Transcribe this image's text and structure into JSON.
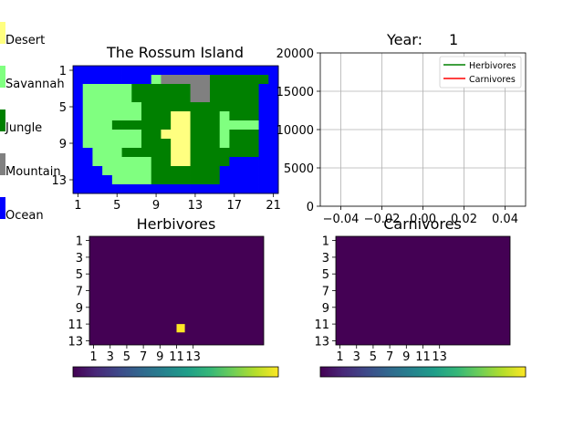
{
  "colors": {
    "desert": "#ffff80",
    "savannah": "#80ff80",
    "jungle": "#008000",
    "mountain": "#808080",
    "ocean": "#0000ff",
    "herbivore_line": "#008000",
    "carnivore_line": "#ff0000",
    "grid": "#b0b0b0"
  },
  "viridis": [
    "#440154",
    "#482878",
    "#3e4989",
    "#31688e",
    "#26828e",
    "#1f9e89",
    "#35b779",
    "#6ece58",
    "#b5de2b",
    "#fde725"
  ],
  "legend": [
    {
      "key": "desert",
      "label": "Desert"
    },
    {
      "key": "savannah",
      "label": "Savannah"
    },
    {
      "key": "jungle",
      "label": "Jungle"
    },
    {
      "key": "mountain",
      "label": "Mountain"
    },
    {
      "key": "ocean",
      "label": "Ocean"
    }
  ],
  "chart_data": [
    {
      "id": "island_map",
      "type": "heatmap",
      "title": "The Rossum Island",
      "rows": 14,
      "cols": 21,
      "x_ticks": [
        1,
        5,
        9,
        13,
        17,
        21
      ],
      "y_ticks": [
        1,
        5,
        9,
        13
      ],
      "legend_map": {
        "W": "ocean",
        "S": "savannah",
        "J": "jungle",
        "M": "mountain",
        "D": "desert"
      },
      "grid": [
        "WWWWWWWWWWWWWWWWWWWWW",
        "WWWWWWWWSMMMMMJJJJJJW",
        "WSSSSSJJJJJJMMJJJJJWW",
        "WSSSSSJJJJJJMMJJJJJWW",
        "WSSSSSSJJJJJJJJJJJJWW",
        "WSSSSSSJJJDDJJJSJJJWW",
        "WSSSJJJJJJDDJJJSSSSWW",
        "WSSSSSSJJDDDJJJSJJJWW",
        "WSSSSSSJJJDDJJJSJJJWW",
        "WWSSSJJJJJDDJJJJJJJWW",
        "WWSSSSSSJJDDJJJJWWWWW",
        "WWWSSSSSJJJJJJJWWWWWW",
        "WWWWSSSSJJJJJJJWWWWWW",
        "WWWWWWWWWWWWWWWWWWWWW"
      ]
    },
    {
      "id": "population_lines",
      "type": "line",
      "title": "Year:",
      "year_value": "1",
      "x_ticks": [
        "−0.04",
        "−0.02",
        "0.00",
        "0.02",
        "0.04"
      ],
      "xlim": [
        -0.05,
        0.05
      ],
      "ylim": [
        0,
        20000
      ],
      "y_ticks": [
        "0",
        "5000",
        "10000",
        "15000",
        "20000"
      ],
      "grid": true,
      "legend_placement": "top-right",
      "series": [
        {
          "name": "Herbivores",
          "color_key": "herbivore_line",
          "x": [],
          "y": []
        },
        {
          "name": "Carnivores",
          "color_key": "carnivore_line",
          "x": [],
          "y": []
        }
      ]
    },
    {
      "id": "herbivore_map",
      "type": "heatmap",
      "title": "Herbivores",
      "rows": 13,
      "cols": 21,
      "x_ticks": [
        "1",
        "3",
        "5",
        "7",
        "9",
        "11",
        "13"
      ],
      "y_ticks": [
        "1",
        "3",
        "5",
        "7",
        "9",
        "11",
        "13"
      ],
      "colormap": "viridis",
      "nonzero_cells": [
        {
          "row": 11,
          "col": 11,
          "value": 1
        }
      ]
    },
    {
      "id": "carnivore_map",
      "type": "heatmap",
      "title": "Carnivores",
      "rows": 13,
      "cols": 21,
      "x_ticks": [
        "1",
        "3",
        "5",
        "7",
        "9",
        "11",
        "13"
      ],
      "y_ticks": [
        "1",
        "3",
        "5",
        "7",
        "9",
        "11",
        "13"
      ],
      "colormap": "viridis",
      "nonzero_cells": []
    }
  ]
}
